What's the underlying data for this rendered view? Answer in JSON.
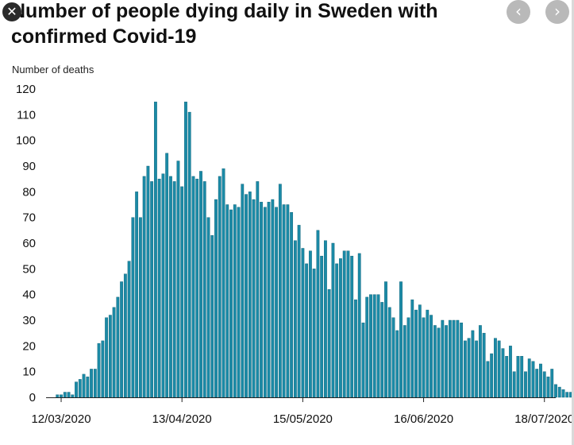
{
  "controls": {
    "close_glyph": "✕",
    "prev_glyph": "‹",
    "next_glyph": "›",
    "close_icon": "close-icon",
    "prev_icon": "chevron-left-icon",
    "next_icon": "chevron-right-icon"
  },
  "colors": {
    "bar": "#1b8aa6",
    "bar_edge": "#0f5f74",
    "axis": "#222222",
    "text": "#111111"
  },
  "chart_data": {
    "type": "bar",
    "title_lines": [
      "Number of people dying daily in Sweden with",
      "confirmed Covid-19"
    ],
    "ylabel": "Number of deaths",
    "xlabel": "",
    "ylim": [
      0,
      120
    ],
    "yticks": [
      0,
      10,
      20,
      30,
      40,
      50,
      60,
      70,
      80,
      90,
      100,
      110,
      120
    ],
    "xtick_labels": [
      "12/03/2020",
      "13/04/2020",
      "15/05/2020",
      "16/06/2020",
      "18/07/2020"
    ],
    "xtick_dates": [
      "2020-03-12",
      "2020-04-13",
      "2020-05-15",
      "2020-06-16",
      "2020-07-18"
    ],
    "xlim": [
      "2020-03-08",
      "2020-07-21"
    ],
    "grid": false,
    "legend": "none",
    "start_date": "2020-03-11",
    "values": [
      1,
      1,
      2,
      2,
      1,
      6,
      7,
      9,
      8,
      11,
      11,
      21,
      22,
      31,
      32,
      35,
      39,
      45,
      48,
      53,
      70,
      80,
      70,
      86,
      90,
      84,
      115,
      85,
      87,
      95,
      86,
      84,
      92,
      82,
      115,
      111,
      86,
      85,
      88,
      84,
      70,
      63,
      77,
      86,
      89,
      75,
      73,
      75,
      74,
      83,
      79,
      80,
      77,
      84,
      76,
      74,
      76,
      77,
      74,
      83,
      75,
      75,
      72,
      61,
      67,
      58,
      52,
      57,
      50,
      65,
      55,
      61,
      42,
      60,
      52,
      54,
      57,
      57,
      55,
      38,
      56,
      29,
      39,
      40,
      40,
      40,
      37,
      45,
      35,
      31,
      26,
      45,
      28,
      31,
      38,
      34,
      36,
      31,
      34,
      32,
      28,
      27,
      30,
      28,
      30,
      30,
      30,
      29,
      22,
      23,
      26,
      22,
      28,
      25,
      14,
      17,
      23,
      22,
      19,
      16,
      20,
      10,
      16,
      16,
      10,
      15,
      14,
      11,
      13,
      10,
      8,
      11,
      5,
      4,
      3,
      2,
      2,
      2,
      2,
      0,
      0
    ]
  }
}
